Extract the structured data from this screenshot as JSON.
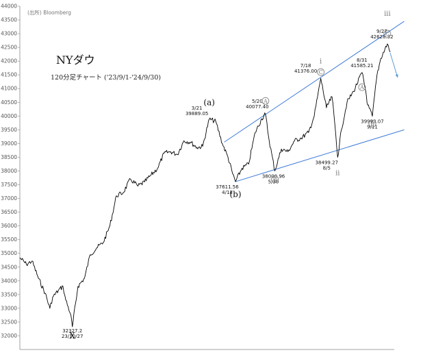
{
  "source": "(出所) Bloomberg",
  "title": "NYダウ",
  "subtitle": "120分足チャート ('23/9/1-'24/9/30)",
  "colors": {
    "price": "#000000",
    "trendline": "#3d7bd9",
    "arrow": "#5b9bd5",
    "label": "#111111",
    "circle": "#777777"
  },
  "chart_data": {
    "type": "line",
    "title": "NYダウ",
    "subtitle": "120分足チャート ('23/9/1-'24/9/30)",
    "x_range": [
      "2023-09-01",
      "2024-09-30"
    ],
    "ylim": [
      31500,
      44000
    ],
    "yticks": [
      32000,
      32500,
      33000,
      33500,
      34000,
      34500,
      35000,
      35500,
      36000,
      36500,
      37000,
      37500,
      38000,
      38500,
      39000,
      39500,
      40000,
      40500,
      41000,
      41500,
      42000,
      42500,
      43000,
      43500,
      44000
    ],
    "ytick_labels": [
      "32000",
      "32500",
      "33000",
      "33500",
      "34000",
      "34500",
      "35000",
      "35500",
      "36000",
      "36500",
      "37000",
      "37500",
      "38000",
      "38500",
      "39000",
      "39500",
      "40000",
      "40500",
      "41000",
      "41500",
      "42000",
      "42500",
      "43000",
      "43500",
      "44000"
    ],
    "series": [
      {
        "points": [
          [
            "2023-09-01",
            34840
          ],
          [
            "2023-09-08",
            34600
          ],
          [
            "2023-09-14",
            34720
          ],
          [
            "2023-09-21",
            34080
          ],
          [
            "2023-09-28",
            33550
          ],
          [
            "2023-10-03",
            33000
          ],
          [
            "2023-10-06",
            33400
          ],
          [
            "2023-10-12",
            33650
          ],
          [
            "2023-10-17",
            33800
          ],
          [
            "2023-10-20",
            33300
          ],
          [
            "2023-10-25",
            32800
          ],
          [
            "2023-10-27",
            32327.2
          ],
          [
            "2023-11-02",
            33800
          ],
          [
            "2023-11-09",
            34100
          ],
          [
            "2023-11-15",
            34950
          ],
          [
            "2023-11-22",
            35200
          ],
          [
            "2023-11-29",
            35400
          ],
          [
            "2023-12-06",
            36000
          ],
          [
            "2023-12-13",
            37100
          ],
          [
            "2023-12-20",
            37200
          ],
          [
            "2023-12-28",
            37700
          ],
          [
            "2024-01-05",
            37450
          ],
          [
            "2024-01-12",
            37600
          ],
          [
            "2024-01-19",
            37850
          ],
          [
            "2024-01-26",
            38100
          ],
          [
            "2024-02-02",
            38650
          ],
          [
            "2024-02-09",
            38700
          ],
          [
            "2024-02-16",
            38600
          ],
          [
            "2024-02-23",
            39100
          ],
          [
            "2024-03-01",
            39050
          ],
          [
            "2024-03-08",
            38850
          ],
          [
            "2024-03-14",
            38900
          ],
          [
            "2024-03-21",
            39889.05
          ],
          [
            "2024-03-28",
            39800
          ],
          [
            "2024-04-04",
            39000
          ],
          [
            "2024-04-10",
            38500
          ],
          [
            "2024-04-15",
            37900
          ],
          [
            "2024-04-18",
            37611.56
          ],
          [
            "2024-04-25",
            38100
          ],
          [
            "2024-05-02",
            38250
          ],
          [
            "2024-05-09",
            39400
          ],
          [
            "2024-05-16",
            39900
          ],
          [
            "2024-05-20",
            40077.4
          ],
          [
            "2024-05-24",
            39100
          ],
          [
            "2024-05-30",
            38000.96
          ],
          [
            "2024-06-06",
            38800
          ],
          [
            "2024-06-13",
            38700
          ],
          [
            "2024-06-20",
            39100
          ],
          [
            "2024-06-27",
            39200
          ],
          [
            "2024-07-05",
            39400
          ],
          [
            "2024-07-11",
            40000
          ],
          [
            "2024-07-18",
            41376
          ],
          [
            "2024-07-24",
            40300
          ],
          [
            "2024-07-30",
            40700
          ],
          [
            "2024-08-02",
            39700
          ],
          [
            "2024-08-05",
            38499.27
          ],
          [
            "2024-08-09",
            39500
          ],
          [
            "2024-08-15",
            40500
          ],
          [
            "2024-08-22",
            40900
          ],
          [
            "2024-08-31",
            41585.21
          ],
          [
            "2024-09-04",
            40900
          ],
          [
            "2024-09-06",
            40400
          ],
          [
            "2024-09-11",
            39993.07
          ],
          [
            "2024-09-16",
            41500
          ],
          [
            "2024-09-20",
            42100
          ],
          [
            "2024-09-27",
            42628.32
          ],
          [
            "2024-09-30",
            42330
          ]
        ]
      }
    ],
    "annotations": [
      {
        "id": "x-low",
        "lines": [
          "32327.2",
          "23/10/27"
        ],
        "date": "2023-10-27",
        "value": 32327.2
      },
      {
        "id": "a-high",
        "lines": [
          "3/21",
          "39889.05"
        ],
        "date": "2024-03-21",
        "value": 39889.05
      },
      {
        "id": "b-low",
        "lines": [
          "37611.56",
          "4/18"
        ],
        "date": "2024-04-18",
        "value": 37611.56
      },
      {
        "id": "may-high",
        "lines": [
          "5/20",
          "40077.40"
        ],
        "date": "2024-05-20",
        "value": 40077.4
      },
      {
        "id": "may-low",
        "lines": [
          "38000.96",
          "5/30"
        ],
        "date": "2024-05-30",
        "value": 38000.96
      },
      {
        "id": "jul-high",
        "lines": [
          "7/18",
          "41376.00"
        ],
        "date": "2024-07-18",
        "value": 41376
      },
      {
        "id": "aug-low",
        "lines": [
          "38499.27",
          "8/5"
        ],
        "date": "2024-08-05",
        "value": 38499.27
      },
      {
        "id": "aug-high",
        "lines": [
          "8/31",
          "41585.21"
        ],
        "date": "2024-08-31",
        "value": 41585.21
      },
      {
        "id": "sep-low",
        "lines": [
          "39993.07",
          "9/11"
        ],
        "date": "2024-09-11",
        "value": 39993.07
      },
      {
        "id": "sep-high",
        "lines": [
          "9/27",
          "42628.32"
        ],
        "date": "2024-09-27",
        "value": 42628.32
      }
    ],
    "wave_labels": [
      {
        "id": "x",
        "text": "X",
        "date": "2023-10-27",
        "value": 31900,
        "style": "big"
      },
      {
        "id": "a-paren",
        "text": "(a)",
        "date": "2024-03-21",
        "value": 40400,
        "style": "big"
      },
      {
        "id": "b-paren",
        "text": "(b)",
        "date": "2024-04-18",
        "value": 37050,
        "style": "big"
      },
      {
        "id": "A1",
        "text": "A",
        "date": "2024-05-20",
        "value": 40550,
        "style": "circle"
      },
      {
        "id": "B1",
        "text": "B",
        "date": "2024-05-30",
        "value": 37700,
        "style": "circle"
      },
      {
        "id": "i",
        "text": "i",
        "date": "2024-07-18",
        "value": 41920,
        "style": "small"
      },
      {
        "id": "C1",
        "text": "C",
        "date": "2024-07-18",
        "value": 41600,
        "style": "circle"
      },
      {
        "id": "ii",
        "text": "ii",
        "date": "2024-08-05",
        "value": 37850,
        "style": "small"
      },
      {
        "id": "A2",
        "text": "A",
        "date": "2024-08-31",
        "value": 41050,
        "style": "circle"
      },
      {
        "id": "B2",
        "text": "B",
        "date": "2024-09-11",
        "value": 39720,
        "style": "circle"
      },
      {
        "id": "iii",
        "text": "iii",
        "date": "2024-09-27",
        "value": 43650,
        "style": "small"
      },
      {
        "id": "C2",
        "text": "C",
        "date": "2024-09-27",
        "value": 43000,
        "style": "circle"
      }
    ],
    "trendlines": [
      {
        "from": [
          "2024-04-18",
          37611.56
        ],
        "to": [
          "2024-10-15",
          39500
        ]
      },
      {
        "from": [
          "2024-04-06",
          39050
        ],
        "to": [
          "2024-10-15",
          43450
        ]
      }
    ],
    "arrow": {
      "from": [
        "2024-09-30",
        42300
      ],
      "to": [
        "2024-10-08",
        41400
      ]
    }
  }
}
